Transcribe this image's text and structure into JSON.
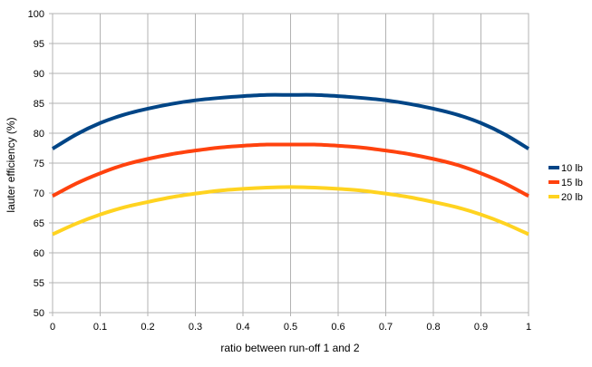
{
  "chart_data": {
    "type": "line",
    "title": "",
    "xlabel": "ratio between run-off 1 and 2",
    "ylabel": "lauter efficiency (%)",
    "xlim": [
      0,
      1
    ],
    "ylim": [
      50,
      100
    ],
    "xticks": [
      "0",
      "0.1",
      "0.2",
      "0.3",
      "0.4",
      "0.5",
      "0.6",
      "0.7",
      "0.8",
      "0.9",
      "1"
    ],
    "yticks": [
      "50",
      "55",
      "60",
      "65",
      "70",
      "75",
      "80",
      "85",
      "90",
      "95",
      "100"
    ],
    "grid": true,
    "legend_position": "right",
    "x": [
      0,
      0.05,
      0.1,
      0.15,
      0.2,
      0.25,
      0.3,
      0.35,
      0.4,
      0.45,
      0.5,
      0.55,
      0.6,
      0.65,
      0.7,
      0.75,
      0.8,
      0.85,
      0.9,
      0.95,
      1
    ],
    "series": [
      {
        "name": "10 lb",
        "color": "#004586",
        "values": [
          77.4,
          79.8,
          81.7,
          83.1,
          84.1,
          84.9,
          85.5,
          85.9,
          86.2,
          86.4,
          86.4,
          86.4,
          86.2,
          85.9,
          85.5,
          84.9,
          84.1,
          83.1,
          81.7,
          79.8,
          77.4
        ]
      },
      {
        "name": "15 lb",
        "color": "#ff420e",
        "values": [
          69.5,
          71.6,
          73.3,
          74.7,
          75.7,
          76.5,
          77.1,
          77.6,
          77.9,
          78.1,
          78.1,
          78.1,
          77.9,
          77.6,
          77.1,
          76.5,
          75.7,
          74.7,
          73.3,
          71.6,
          69.5
        ]
      },
      {
        "name": "20 lb",
        "color": "#ffd320",
        "values": [
          63.1,
          64.9,
          66.4,
          67.6,
          68.5,
          69.3,
          69.9,
          70.4,
          70.7,
          70.9,
          71.0,
          70.9,
          70.7,
          70.4,
          69.9,
          69.3,
          68.5,
          67.6,
          66.4,
          64.9,
          63.1
        ]
      }
    ]
  }
}
